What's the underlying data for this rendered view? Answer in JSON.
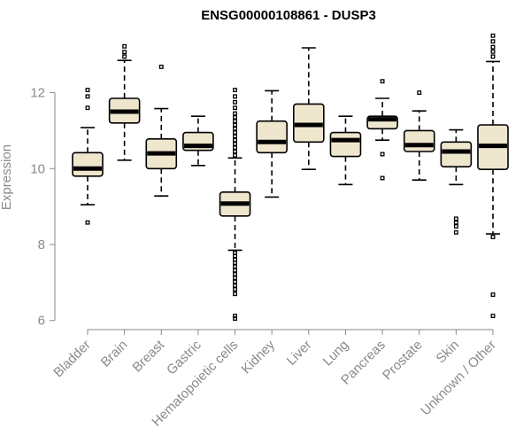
{
  "chart_data": {
    "type": "boxplot",
    "title": "ENSG00000108861 - DUSP3",
    "xlabel": "",
    "ylabel": "Expression",
    "ylim": [
      5.9,
      13.6
    ],
    "yticks": [
      6,
      8,
      10,
      12
    ],
    "categories": [
      "Bladder",
      "Brain",
      "Breast",
      "Gastric",
      "Hematopoietic cells",
      "Kidney",
      "Liver",
      "Lung",
      "Pancreas",
      "Prostate",
      "Skin",
      "Unknown / Other"
    ],
    "boxes": [
      {
        "name": "Bladder",
        "whisker_low": 9.05,
        "q1": 9.8,
        "median": 10.0,
        "q3": 10.42,
        "whisker_high": 11.08,
        "outliers": [
          8.58,
          11.6,
          11.9,
          12.07
        ]
      },
      {
        "name": "Brain",
        "whisker_low": 10.22,
        "q1": 11.2,
        "median": 11.5,
        "q3": 11.85,
        "whisker_high": 12.85,
        "outliers": [
          12.95,
          13.07,
          13.22
        ]
      },
      {
        "name": "Breast",
        "whisker_low": 9.28,
        "q1": 10.0,
        "median": 10.4,
        "q3": 10.78,
        "whisker_high": 11.58,
        "outliers": [
          12.68
        ]
      },
      {
        "name": "Gastric",
        "whisker_low": 10.08,
        "q1": 10.48,
        "median": 10.6,
        "q3": 10.95,
        "whisker_high": 11.38,
        "outliers": []
      },
      {
        "name": "Hematopoietic cells",
        "whisker_low": 7.85,
        "q1": 8.75,
        "median": 9.08,
        "q3": 9.38,
        "whisker_high": 10.28,
        "outliers": [
          6.05,
          6.12,
          6.7,
          6.82,
          6.92,
          7.02,
          7.12,
          7.22,
          7.32,
          7.42,
          7.52,
          7.6,
          7.7,
          7.78,
          10.35,
          10.45,
          10.55,
          10.65,
          10.75,
          10.85,
          10.95,
          11.05,
          11.15,
          11.25,
          11.35,
          11.45,
          11.6,
          11.75,
          11.9,
          12.07
        ]
      },
      {
        "name": "Kidney",
        "whisker_low": 9.25,
        "q1": 10.42,
        "median": 10.7,
        "q3": 11.25,
        "whisker_high": 12.05,
        "outliers": []
      },
      {
        "name": "Liver",
        "whisker_low": 9.98,
        "q1": 10.7,
        "median": 11.15,
        "q3": 11.7,
        "whisker_high": 13.18,
        "outliers": []
      },
      {
        "name": "Lung",
        "whisker_low": 9.58,
        "q1": 10.32,
        "median": 10.75,
        "q3": 10.95,
        "whisker_high": 11.38,
        "outliers": []
      },
      {
        "name": "Pancreas",
        "whisker_low": 10.75,
        "q1": 11.05,
        "median": 11.3,
        "q3": 11.38,
        "whisker_high": 11.85,
        "outliers": [
          9.75,
          10.38,
          12.3
        ]
      },
      {
        "name": "Prostate",
        "whisker_low": 9.7,
        "q1": 10.45,
        "median": 10.62,
        "q3": 11.0,
        "whisker_high": 11.52,
        "outliers": [
          12.0
        ]
      },
      {
        "name": "Skin",
        "whisker_low": 9.58,
        "q1": 10.05,
        "median": 10.45,
        "q3": 10.7,
        "whisker_high": 11.02,
        "outliers": [
          8.32,
          8.48,
          8.58,
          8.68
        ]
      },
      {
        "name": "Unknown / Other",
        "whisker_low": 8.28,
        "q1": 9.98,
        "median": 10.6,
        "q3": 11.15,
        "whisker_high": 12.82,
        "outliers": [
          6.12,
          6.68,
          8.2,
          12.95,
          13.08,
          13.2,
          13.35,
          13.5
        ]
      }
    ],
    "colors": {
      "box_fill": "#efe6ce",
      "box_stroke": "#000000",
      "axis": "#8a8a8a"
    }
  }
}
